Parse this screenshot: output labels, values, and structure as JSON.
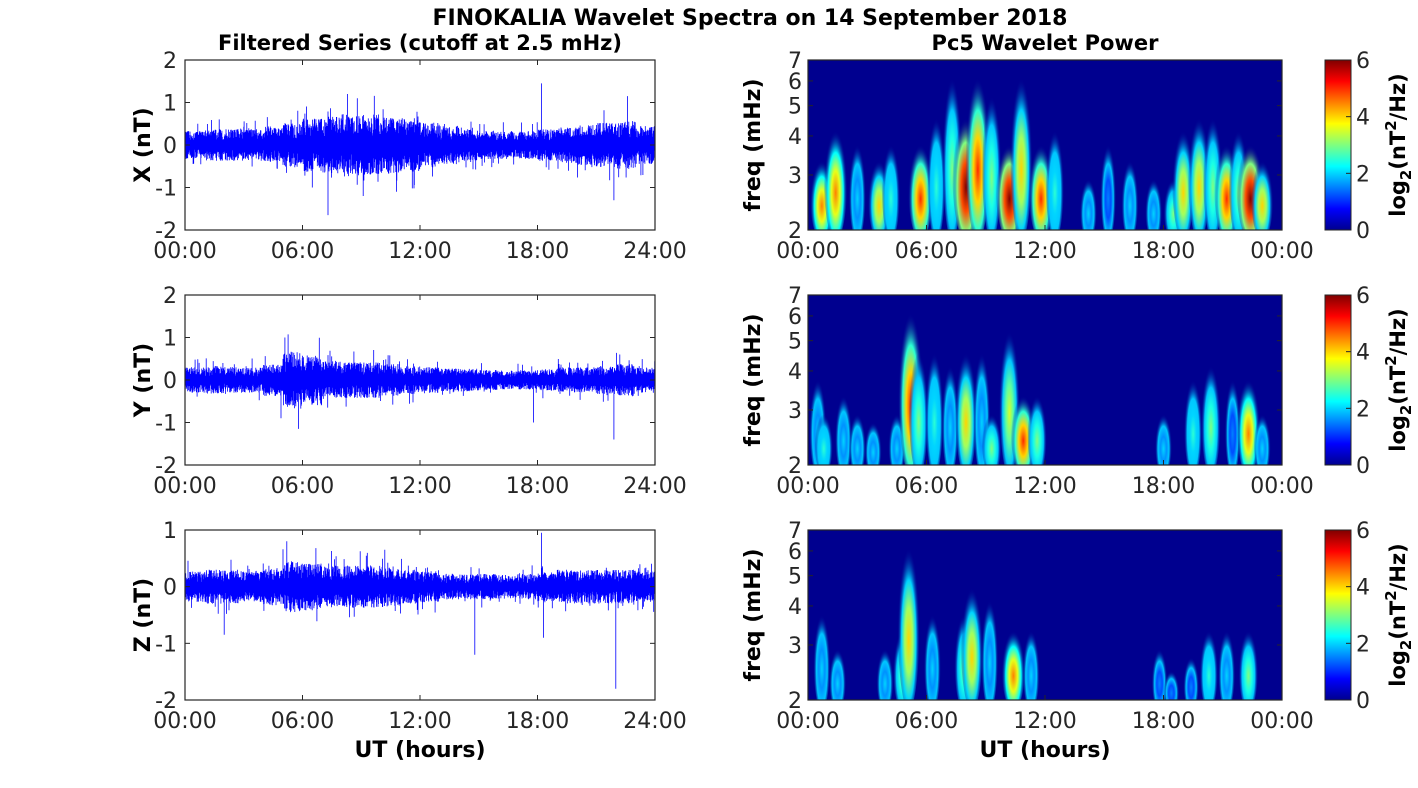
{
  "figure_title": "FINOKALIA Wavelet Spectra on 14 September 2018",
  "colors": {
    "series": "#0000ff",
    "axis": "#262626"
  },
  "chart_data": [
    {
      "type": "line",
      "title": "Filtered Series (cutoff at 2.5 mHz)",
      "ylabel": "X (nT)",
      "xlabel": "",
      "ylim": [
        -2,
        2
      ],
      "yticks": [
        "-2",
        "-1",
        "0",
        "1",
        "2"
      ],
      "xticks": [
        "00:00",
        "06:00",
        "12:00",
        "18:00",
        "24:00"
      ],
      "xlim_hours": [
        0,
        24
      ],
      "envelope_per_hour": [
        0.22,
        0.25,
        0.25,
        0.25,
        0.27,
        0.35,
        0.42,
        0.45,
        0.5,
        0.48,
        0.45,
        0.42,
        0.35,
        0.3,
        0.25,
        0.22,
        0.22,
        0.22,
        0.25,
        0.28,
        0.32,
        0.35,
        0.38,
        0.3
      ],
      "spikes": [
        [
          7.3,
          -1.65
        ],
        [
          8.3,
          1.2
        ],
        [
          8.8,
          1.1
        ],
        [
          18.2,
          1.45
        ],
        [
          22.6,
          1.15
        ],
        [
          21.9,
          -1.3
        ],
        [
          10.8,
          -1.1
        ],
        [
          6.5,
          -1.0
        ],
        [
          9.1,
          -1.2
        ]
      ]
    },
    {
      "type": "line",
      "title": "",
      "ylabel": "Y (nT)",
      "xlabel": "",
      "ylim": [
        -2,
        2
      ],
      "yticks": [
        "-2",
        "-1",
        "0",
        "1",
        "2"
      ],
      "xticks": [
        "00:00",
        "06:00",
        "12:00",
        "18:00",
        "24:00"
      ],
      "xlim_hours": [
        0,
        24
      ],
      "envelope_per_hour": [
        0.2,
        0.22,
        0.2,
        0.2,
        0.25,
        0.45,
        0.4,
        0.3,
        0.28,
        0.28,
        0.25,
        0.22,
        0.2,
        0.18,
        0.18,
        0.16,
        0.15,
        0.15,
        0.17,
        0.2,
        0.2,
        0.22,
        0.25,
        0.2
      ],
      "spikes": [
        [
          5.1,
          1.0
        ],
        [
          5.8,
          -1.15
        ],
        [
          21.9,
          -1.4
        ],
        [
          17.8,
          -1.0
        ],
        [
          22.2,
          0.6
        ],
        [
          4.9,
          -0.9
        ]
      ]
    },
    {
      "type": "line",
      "title": "",
      "ylabel": "Z (nT)",
      "xlabel": "UT (hours)",
      "ylim": [
        -2,
        1
      ],
      "yticks": [
        "-2",
        "-1",
        "0",
        "1"
      ],
      "xticks": [
        "00:00",
        "06:00",
        "12:00",
        "18:00",
        "24:00"
      ],
      "xlim_hours": [
        0,
        24
      ],
      "envelope_per_hour": [
        0.18,
        0.2,
        0.2,
        0.18,
        0.22,
        0.3,
        0.28,
        0.25,
        0.25,
        0.25,
        0.24,
        0.2,
        0.18,
        0.15,
        0.15,
        0.15,
        0.14,
        0.15,
        0.17,
        0.2,
        0.2,
        0.2,
        0.2,
        0.18
      ],
      "spikes": [
        [
          5.2,
          0.8
        ],
        [
          14.8,
          -1.2
        ],
        [
          18.2,
          0.95
        ],
        [
          18.3,
          -0.9
        ],
        [
          22.0,
          -1.8
        ],
        [
          10.2,
          0.65
        ],
        [
          2.0,
          -0.85
        ]
      ]
    },
    {
      "type": "heatmap",
      "title": "Pc5 Wavelet Power",
      "ylabel": "freq (mHz)",
      "xlabel": "",
      "yscale": "log",
      "ylim": [
        2,
        7
      ],
      "yticks": [
        "2",
        "3",
        "4",
        "5",
        "6",
        "7"
      ],
      "xticks": [
        "00:00",
        "06:00",
        "12:00",
        "18:00",
        "00:00"
      ],
      "colorbar": {
        "label": "log2(nT2/Hz)",
        "ticks": [
          "0",
          "2",
          "4",
          "6"
        ],
        "range": [
          0,
          6
        ]
      },
      "events_hour_power_topfreq": [
        [
          0.7,
          4.5,
          3.5
        ],
        [
          1.4,
          4.5,
          4.5
        ],
        [
          2.5,
          2,
          4
        ],
        [
          3.6,
          4,
          3.5
        ],
        [
          4.2,
          2.5,
          4
        ],
        [
          5.7,
          5,
          4
        ],
        [
          6.5,
          2.5,
          5
        ],
        [
          7.3,
          3,
          7
        ],
        [
          8.0,
          6,
          5
        ],
        [
          8.6,
          5,
          7
        ],
        [
          9.3,
          3,
          6
        ],
        [
          10.2,
          6,
          4
        ],
        [
          10.8,
          4,
          7
        ],
        [
          11.8,
          5,
          4
        ],
        [
          12.5,
          2.5,
          4.5
        ],
        [
          14.2,
          2,
          3
        ],
        [
          15.2,
          1.5,
          4
        ],
        [
          16.3,
          2,
          3.5
        ],
        [
          17.5,
          2,
          3
        ],
        [
          18.5,
          3,
          3
        ],
        [
          19.0,
          4,
          4.5
        ],
        [
          19.8,
          4,
          5
        ],
        [
          20.5,
          3,
          5
        ],
        [
          21.2,
          5,
          4
        ],
        [
          21.8,
          3,
          4.5
        ],
        [
          22.4,
          6,
          4
        ],
        [
          23.0,
          4,
          3.5
        ]
      ]
    },
    {
      "type": "heatmap",
      "title": "",
      "ylabel": "freq (mHz)",
      "xlabel": "",
      "yscale": "log",
      "ylim": [
        2,
        7
      ],
      "yticks": [
        "2",
        "3",
        "4",
        "5",
        "6",
        "7"
      ],
      "xticks": [
        "00:00",
        "06:00",
        "12:00",
        "18:00",
        "00:00"
      ],
      "colorbar": {
        "label": "log2(nT2/Hz)",
        "ticks": [
          "0",
          "2",
          "4",
          "6"
        ],
        "range": [
          0,
          6
        ]
      },
      "events_hour_power_topfreq": [
        [
          0.5,
          2,
          4
        ],
        [
          0.8,
          2.5,
          3
        ],
        [
          1.8,
          2,
          3.5
        ],
        [
          2.5,
          2,
          3
        ],
        [
          3.3,
          2,
          2.8
        ],
        [
          4.5,
          2,
          3
        ],
        [
          5.2,
          5,
          7
        ],
        [
          5.6,
          3,
          5
        ],
        [
          6.4,
          2.5,
          5
        ],
        [
          7.2,
          2,
          4.5
        ],
        [
          8.0,
          4,
          5
        ],
        [
          8.8,
          2,
          5
        ],
        [
          9.3,
          3,
          3
        ],
        [
          10.2,
          3.5,
          6
        ],
        [
          10.9,
          5,
          3.5
        ],
        [
          11.6,
          3,
          3.5
        ],
        [
          18.0,
          2,
          3
        ],
        [
          19.5,
          2.5,
          4
        ],
        [
          20.4,
          3,
          4.5
        ],
        [
          21.5,
          1.5,
          4
        ],
        [
          22.3,
          4.5,
          4
        ],
        [
          23.0,
          2,
          3
        ]
      ]
    },
    {
      "type": "heatmap",
      "title": "",
      "ylabel": "freq (mHz)",
      "xlabel": "UT (hours)",
      "yscale": "log",
      "ylim": [
        2,
        7
      ],
      "yticks": [
        "2",
        "3",
        "4",
        "5",
        "6",
        "7"
      ],
      "xticks": [
        "00:00",
        "06:00",
        "12:00",
        "18:00",
        "00:00"
      ],
      "colorbar": {
        "label": "log2(nT2/Hz)",
        "ticks": [
          "0",
          "2",
          "4",
          "6"
        ],
        "range": [
          0,
          6
        ]
      },
      "events_hour_power_topfreq": [
        [
          0.7,
          2,
          4
        ],
        [
          1.5,
          2,
          3
        ],
        [
          3.9,
          2,
          3
        ],
        [
          4.8,
          3,
          3.5
        ],
        [
          5.1,
          4,
          7
        ],
        [
          6.3,
          2,
          4
        ],
        [
          7.9,
          3,
          4
        ],
        [
          8.3,
          4,
          5
        ],
        [
          9.2,
          2,
          4.5
        ],
        [
          10.4,
          4.5,
          3.5
        ],
        [
          11.3,
          2,
          3.5
        ],
        [
          17.8,
          1.5,
          3
        ],
        [
          18.4,
          1.5,
          2.5
        ],
        [
          19.4,
          1.5,
          2.8
        ],
        [
          20.3,
          2.5,
          3.5
        ],
        [
          21.2,
          2,
          3.5
        ],
        [
          22.3,
          3,
          3.5
        ]
      ]
    }
  ]
}
